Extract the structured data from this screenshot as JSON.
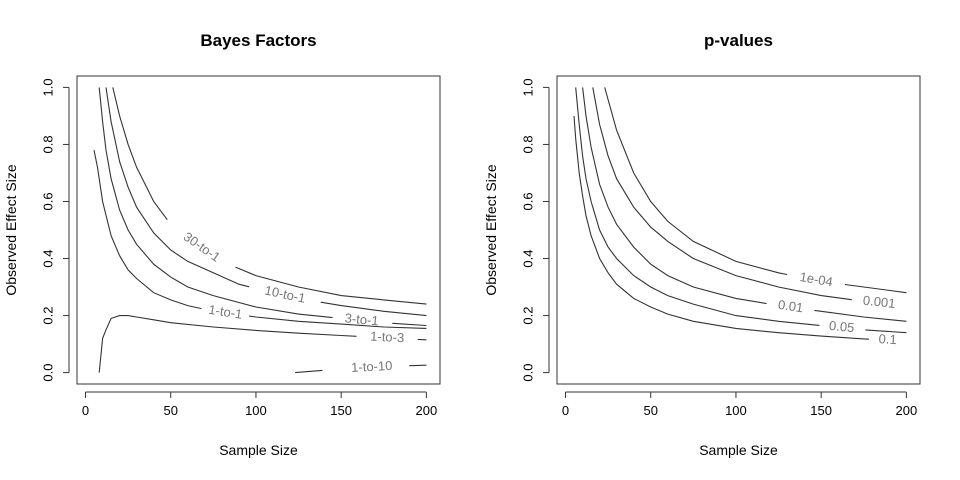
{
  "chart_data": [
    {
      "type": "line",
      "title": "Bayes Factors",
      "xlabel": "Sample Size",
      "ylabel": "Observed Effect Size",
      "xlim": [
        -5,
        208
      ],
      "ylim": [
        -0.04,
        1.04
      ],
      "xticks": [
        "0",
        "50",
        "100",
        "150",
        "200"
      ],
      "xtick_values": [
        0,
        50,
        100,
        150,
        200
      ],
      "yticks": [
        "0.0",
        "0.2",
        "0.4",
        "0.6",
        "0.8",
        "1.0"
      ],
      "ytick_values": [
        0,
        0.2,
        0.4,
        0.6,
        0.8,
        1.0
      ],
      "grid": false,
      "series": [
        {
          "label": "30-to-1",
          "x": [
            16,
            20,
            25,
            30,
            35,
            40,
            45,
            50,
            60,
            80,
            100,
            125,
            150,
            175,
            200
          ],
          "y": [
            1.0,
            0.9,
            0.8,
            0.72,
            0.66,
            0.6,
            0.56,
            0.52,
            0.47,
            0.39,
            0.34,
            0.3,
            0.27,
            0.255,
            0.24
          ],
          "label_at": 68,
          "label_span": [
            48,
            88
          ]
        },
        {
          "label": "10-to-1",
          "x": [
            12,
            15,
            20,
            25,
            30,
            40,
            50,
            60,
            75,
            90,
            100,
            125,
            150,
            175,
            200
          ],
          "y": [
            1.0,
            0.88,
            0.74,
            0.65,
            0.58,
            0.49,
            0.43,
            0.39,
            0.35,
            0.31,
            0.295,
            0.26,
            0.235,
            0.215,
            0.2
          ],
          "label_at": 117,
          "label_span": [
            96,
            138
          ]
        },
        {
          "label": "3-to-1",
          "x": [
            8,
            10,
            12,
            15,
            20,
            25,
            30,
            40,
            50,
            60,
            75,
            100,
            125,
            150,
            175,
            200
          ],
          "y": [
            1.0,
            0.88,
            0.78,
            0.68,
            0.57,
            0.5,
            0.45,
            0.38,
            0.335,
            0.3,
            0.27,
            0.23,
            0.205,
            0.19,
            0.175,
            0.165
          ],
          "label_at": 162,
          "label_span": [
            145,
            180
          ]
        },
        {
          "label": "1-to-1",
          "x": [
            5,
            7,
            10,
            15,
            20,
            25,
            30,
            40,
            50,
            60,
            75,
            100,
            125,
            150,
            175,
            200
          ],
          "y": [
            0.78,
            0.72,
            0.6,
            0.48,
            0.41,
            0.36,
            0.33,
            0.28,
            0.255,
            0.235,
            0.215,
            0.195,
            0.18,
            0.17,
            0.16,
            0.155
          ],
          "label_at": 82,
          "label_span": [
            68,
            96
          ]
        },
        {
          "label": "1-to-3",
          "x": [
            8,
            9,
            10,
            12,
            15,
            20,
            25,
            30,
            40,
            50,
            75,
            100,
            125,
            150,
            175,
            200
          ],
          "y": [
            0.0,
            0.06,
            0.12,
            0.15,
            0.19,
            0.2,
            0.2,
            0.195,
            0.185,
            0.175,
            0.16,
            0.148,
            0.138,
            0.13,
            0.122,
            0.115
          ],
          "label_at": 177,
          "label_span": [
            159,
            195
          ]
        },
        {
          "label": "1-to-10",
          "x": [
            123,
            135,
            150,
            165,
            180,
            190,
            200
          ],
          "y": [
            0.0,
            0.006,
            0.012,
            0.017,
            0.021,
            0.024,
            0.026
          ],
          "label_at": 168,
          "label_span": [
            139,
            190
          ]
        }
      ]
    },
    {
      "type": "line",
      "title": "p-values",
      "xlabel": "Sample Size",
      "ylabel": "Observed Effect Size",
      "xlim": [
        -5,
        208
      ],
      "ylim": [
        -0.04,
        1.04
      ],
      "xticks": [
        "0",
        "50",
        "100",
        "150",
        "200"
      ],
      "xtick_values": [
        0,
        50,
        100,
        150,
        200
      ],
      "yticks": [
        "0.0",
        "0.2",
        "0.4",
        "0.6",
        "0.8",
        "1.0"
      ],
      "ytick_values": [
        0,
        0.2,
        0.4,
        0.6,
        0.8,
        1.0
      ],
      "grid": false,
      "series": [
        {
          "label": "1e-04",
          "x": [
            23,
            30,
            40,
            50,
            60,
            75,
            100,
            125,
            150,
            175,
            200
          ],
          "y": [
            1.0,
            0.85,
            0.7,
            0.6,
            0.53,
            0.46,
            0.39,
            0.35,
            0.32,
            0.3,
            0.28
          ],
          "label_at": 147,
          "label_span": [
            130,
            164
          ]
        },
        {
          "label": "0.001",
          "x": [
            16,
            20,
            25,
            30,
            40,
            50,
            60,
            75,
            100,
            125,
            150,
            175,
            200
          ],
          "y": [
            1.0,
            0.87,
            0.76,
            0.68,
            0.58,
            0.51,
            0.46,
            0.4,
            0.34,
            0.3,
            0.27,
            0.25,
            0.235
          ],
          "label_at": 184,
          "label_span": [
            168,
            200
          ]
        },
        {
          "label": "0.01",
          "x": [
            10,
            12,
            15,
            20,
            25,
            30,
            40,
            50,
            60,
            75,
            100,
            125,
            150,
            175,
            200
          ],
          "y": [
            1.0,
            0.9,
            0.79,
            0.66,
            0.58,
            0.52,
            0.44,
            0.38,
            0.34,
            0.3,
            0.26,
            0.235,
            0.215,
            0.195,
            0.18
          ],
          "label_at": 132,
          "label_span": [
            118,
            146
          ]
        },
        {
          "label": "0.05",
          "x": [
            6,
            8,
            10,
            12,
            15,
            20,
            25,
            30,
            40,
            50,
            60,
            75,
            100,
            125,
            150,
            175,
            200
          ],
          "y": [
            1.0,
            0.87,
            0.76,
            0.68,
            0.6,
            0.5,
            0.44,
            0.4,
            0.34,
            0.3,
            0.27,
            0.24,
            0.2,
            0.18,
            0.165,
            0.15,
            0.14
          ],
          "label_at": 162,
          "label_span": [
            149,
            176
          ]
        },
        {
          "label": "0.1",
          "x": [
            5,
            6,
            8,
            10,
            12,
            15,
            20,
            25,
            30,
            40,
            50,
            60,
            75,
            100,
            125,
            150,
            175,
            200
          ],
          "y": [
            0.9,
            0.82,
            0.7,
            0.62,
            0.55,
            0.48,
            0.4,
            0.35,
            0.31,
            0.26,
            0.23,
            0.205,
            0.18,
            0.155,
            0.14,
            0.128,
            0.118,
            0.11
          ],
          "label_at": 189,
          "label_span": [
            178,
            200
          ]
        }
      ]
    }
  ]
}
